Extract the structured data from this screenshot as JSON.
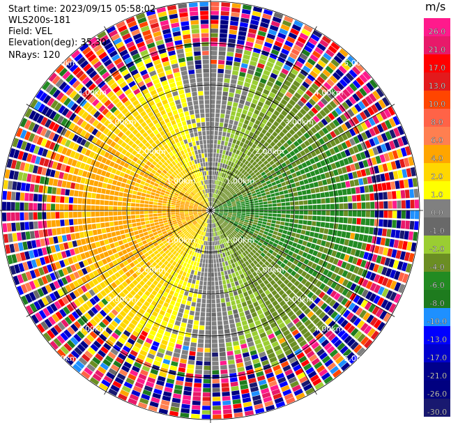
{
  "info": {
    "start_time": "Start time: 2023/09/15 05:58:02",
    "instrument": "WLS200s-181",
    "field": "Field: VEL",
    "elevation": "Elevation(deg): 35.30",
    "nrays": "NRays: 120"
  },
  "colorbar": {
    "unit": "m/s",
    "ticks": [
      "26.0",
      "21.0",
      "17.0",
      "13.0",
      "10.0",
      "8.0",
      "6.0",
      "4.0",
      "2.0",
      "1.0",
      "0.0",
      "-1.0",
      "-2.0",
      "-4.0",
      "-6.0",
      "-8.0",
      "-10.0",
      "-13.0",
      "-17.0",
      "-21.0",
      "-26.0",
      "-30.0"
    ],
    "colors": [
      "#ff1a8c",
      "#e8196a",
      "#ff0000",
      "#e31a1c",
      "#ff4500",
      "#ff6347",
      "#ff7f50",
      "#ffa500",
      "#ffd700",
      "#ffff00",
      "#808080",
      "#696969",
      "#9acd32",
      "#6b8e23",
      "#228b22",
      "#1e7b1e",
      "#1e90ff",
      "#0000ff",
      "#0000cd",
      "#00008b",
      "#000080",
      "#191970"
    ]
  },
  "range_labels": [
    "1.00km",
    "2.00km",
    "3.00km",
    "4.00km",
    "5.00km"
  ],
  "chart_data": {
    "type": "heatmap",
    "projection": "polar (PPI)",
    "nrays": 120,
    "ranges_km": [
      1,
      2,
      3,
      4,
      5
    ],
    "field": "VEL",
    "unit": "m/s",
    "description_values": {
      "west_sector": "positive 2 to 6 m/s (yellow/orange)",
      "east_sector": "negative -2 to -6 m/s (green)",
      "outer_ring": "noise beyond ~4 km"
    }
  }
}
